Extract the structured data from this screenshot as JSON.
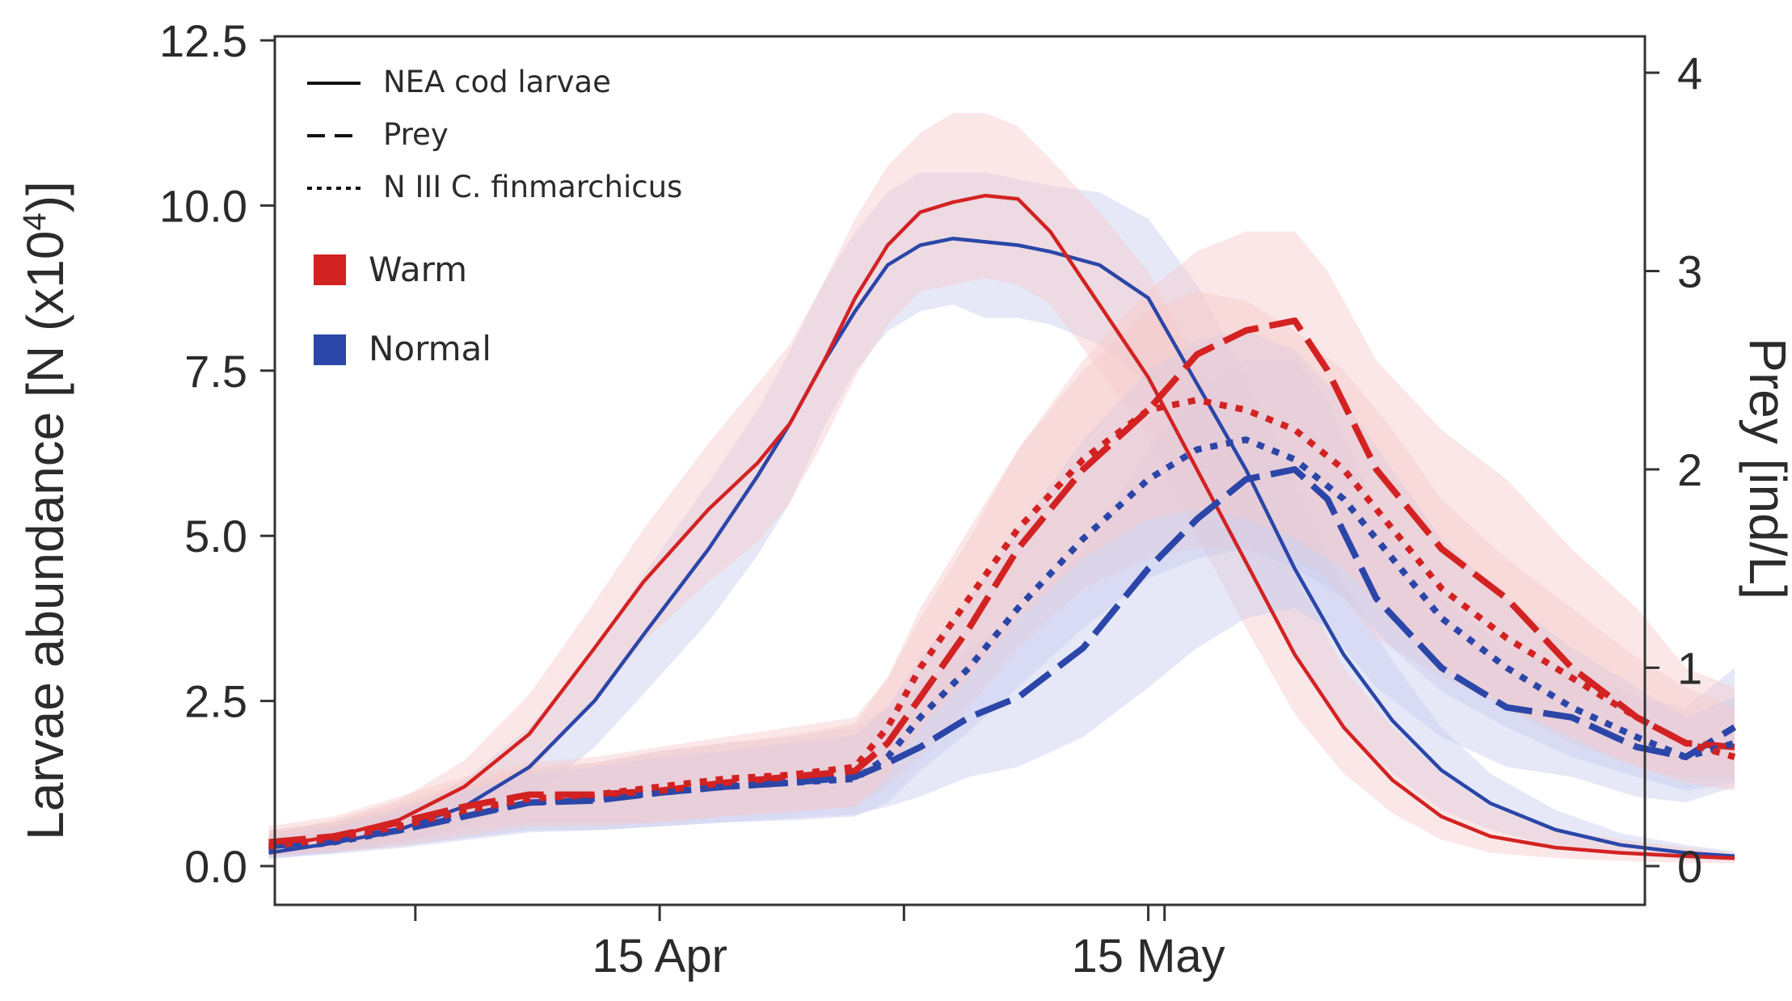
{
  "chart_data": {
    "type": "line",
    "title": "",
    "xlabel": "",
    "ylabel": "Larvae abundance [N (x10",
    "ylabel_sup": "4",
    "ylabel_end": ")]",
    "y2label": "Prey [ind/L]",
    "ylim": [
      0,
      12.5
    ],
    "y2lim": [
      0,
      4.15
    ],
    "yticks": [
      0.0,
      2.5,
      5.0,
      7.5,
      10.0,
      12.5
    ],
    "ytick_labels": [
      "0.0",
      "2.5",
      "5.0",
      "7.5",
      "10.0",
      "12.5"
    ],
    "y2ticks": [
      0,
      1,
      2,
      3,
      4
    ],
    "y2tick_labels": [
      "0",
      "1",
      "2",
      "3",
      "4"
    ],
    "x_days": [
      -12,
      4
    ],
    "xticks_minor": [
      -1,
      29,
      45
    ],
    "xticks_labeled": [
      14,
      44
    ],
    "xtick_labels": [
      "15 Apr",
      "15 May"
    ],
    "x_unit": "days since 1 Apr",
    "legend": {
      "line_styles": [
        {
          "style": "solid",
          "label": "NEA cod larvae"
        },
        {
          "style": "dashed",
          "label": "Prey"
        },
        {
          "style": "dotted",
          "label": "N III C. finmarchicus"
        }
      ],
      "scenarios": [
        {
          "label": "Warm",
          "color": "#d32222"
        },
        {
          "label": "Normal",
          "color": "#2b46a8"
        }
      ]
    },
    "colors": {
      "warm": "#d32222",
      "normal": "#2b46a8",
      "warm_band": "#f7c9c9",
      "normal_band": "#c7cbee"
    },
    "series": [
      {
        "name": "NEA cod larvae - Warm",
        "scenario": "warm",
        "style": "solid",
        "axis": "left",
        "x": [
          -10,
          -6,
          -2,
          2,
          6,
          10,
          13,
          17,
          20,
          22,
          24,
          26,
          28,
          30,
          32,
          34,
          36,
          38,
          41,
          44,
          47,
          50,
          53,
          56,
          59,
          62,
          65,
          69,
          73,
          77,
          80
        ],
        "y": [
          0.3,
          0.45,
          0.7,
          1.2,
          2.0,
          3.3,
          4.3,
          5.4,
          6.1,
          6.7,
          7.6,
          8.6,
          9.4,
          9.9,
          10.05,
          10.15,
          10.1,
          9.6,
          8.5,
          7.4,
          6.0,
          4.6,
          3.2,
          2.1,
          1.3,
          0.75,
          0.45,
          0.28,
          0.2,
          0.15,
          0.12
        ],
        "band_hi": [
          0.5,
          0.7,
          1.0,
          1.6,
          2.6,
          4.0,
          5.1,
          6.4,
          7.3,
          7.9,
          8.8,
          9.8,
          10.6,
          11.1,
          11.4,
          11.4,
          11.2,
          10.7,
          9.9,
          9.0,
          7.6,
          6.0,
          4.4,
          3.0,
          2.1,
          1.4,
          0.9,
          0.55,
          0.4,
          0.28,
          0.2
        ],
        "band_lo": [
          0.15,
          0.25,
          0.45,
          0.8,
          1.4,
          2.5,
          3.4,
          4.3,
          4.9,
          5.5,
          6.4,
          7.4,
          8.2,
          8.7,
          8.8,
          8.9,
          8.8,
          8.5,
          7.5,
          6.5,
          5.0,
          3.6,
          2.3,
          1.4,
          0.8,
          0.4,
          0.2,
          0.12,
          0.08,
          0.05,
          0.04
        ]
      },
      {
        "name": "NEA cod larvae - Normal",
        "scenario": "normal",
        "style": "solid",
        "axis": "left",
        "x": [
          -10,
          -6,
          -2,
          2,
          6,
          10,
          13,
          17,
          20,
          22,
          24,
          26,
          28,
          30,
          32,
          34,
          36,
          38,
          41,
          44,
          47,
          50,
          53,
          56,
          59,
          62,
          65,
          69,
          73,
          77,
          80
        ],
        "y": [
          0.2,
          0.35,
          0.55,
          0.9,
          1.5,
          2.5,
          3.5,
          4.8,
          5.9,
          6.7,
          7.6,
          8.4,
          9.1,
          9.4,
          9.5,
          9.45,
          9.4,
          9.3,
          9.1,
          8.6,
          7.3,
          6.0,
          4.5,
          3.2,
          2.2,
          1.45,
          0.95,
          0.55,
          0.32,
          0.2,
          0.15
        ],
        "band_hi": [
          0.35,
          0.55,
          0.8,
          1.3,
          2.1,
          3.3,
          4.4,
          5.8,
          6.9,
          7.8,
          8.8,
          9.6,
          10.2,
          10.5,
          10.5,
          10.5,
          10.4,
          10.3,
          10.2,
          9.8,
          8.8,
          7.4,
          5.8,
          4.3,
          3.1,
          2.1,
          1.4,
          0.85,
          0.5,
          0.32,
          0.22
        ],
        "band_lo": [
          0.1,
          0.2,
          0.35,
          0.6,
          1.0,
          1.8,
          2.6,
          3.7,
          4.7,
          5.5,
          6.6,
          7.5,
          8.1,
          8.4,
          8.5,
          8.3,
          8.3,
          8.2,
          7.9,
          7.3,
          5.8,
          4.6,
          3.2,
          2.1,
          1.4,
          0.85,
          0.55,
          0.3,
          0.18,
          0.1,
          0.08
        ]
      },
      {
        "name": "Prey - Warm",
        "scenario": "warm",
        "style": "dashed",
        "axis": "right",
        "x": [
          -10,
          -6,
          -2,
          2,
          6,
          10,
          14,
          18,
          22,
          26,
          28,
          30,
          33,
          36,
          40,
          44,
          47,
          50,
          53,
          55,
          58,
          62,
          66,
          70,
          74,
          77,
          80
        ],
        "y": [
          0.12,
          0.15,
          0.22,
          0.3,
          0.36,
          0.36,
          0.38,
          0.42,
          0.45,
          0.48,
          0.62,
          0.85,
          1.2,
          1.6,
          2.0,
          2.3,
          2.58,
          2.7,
          2.75,
          2.5,
          2.0,
          1.6,
          1.35,
          1.0,
          0.75,
          0.62,
          0.6
        ],
        "band_hi": [
          0.2,
          0.25,
          0.35,
          0.45,
          0.52,
          0.55,
          0.6,
          0.65,
          0.7,
          0.75,
          0.95,
          1.25,
          1.65,
          2.1,
          2.55,
          2.9,
          3.1,
          3.2,
          3.2,
          3.0,
          2.55,
          2.2,
          1.95,
          1.6,
          1.3,
          1.0,
          0.9
        ],
        "band_lo": [
          0.06,
          0.08,
          0.12,
          0.18,
          0.22,
          0.22,
          0.22,
          0.25,
          0.28,
          0.3,
          0.4,
          0.55,
          0.8,
          1.1,
          1.4,
          1.55,
          1.6,
          1.6,
          1.55,
          1.45,
          1.15,
          0.95,
          0.8,
          0.62,
          0.5,
          0.45,
          0.45
        ]
      },
      {
        "name": "Prey - Normal",
        "scenario": "normal",
        "style": "dashed",
        "axis": "right",
        "x": [
          -10,
          -6,
          -2,
          2,
          6,
          10,
          14,
          18,
          22,
          26,
          28,
          30,
          33,
          36,
          40,
          44,
          47,
          50,
          53,
          55,
          58,
          62,
          66,
          70,
          74,
          77,
          80
        ],
        "y": [
          0.1,
          0.13,
          0.18,
          0.25,
          0.32,
          0.33,
          0.37,
          0.4,
          0.42,
          0.45,
          0.52,
          0.6,
          0.75,
          0.85,
          1.1,
          1.5,
          1.75,
          1.95,
          2.0,
          1.85,
          1.35,
          1.0,
          0.8,
          0.75,
          0.6,
          0.55,
          0.7
        ],
        "band_hi": [
          0.18,
          0.22,
          0.3,
          0.4,
          0.48,
          0.52,
          0.58,
          0.62,
          0.65,
          0.7,
          0.8,
          0.9,
          1.1,
          1.25,
          1.6,
          2.1,
          2.4,
          2.55,
          2.55,
          2.35,
          1.8,
          1.35,
          1.1,
          1.0,
          0.85,
          0.8,
          1.0
        ],
        "band_lo": [
          0.05,
          0.07,
          0.1,
          0.14,
          0.18,
          0.18,
          0.2,
          0.22,
          0.24,
          0.26,
          0.3,
          0.35,
          0.45,
          0.5,
          0.65,
          0.9,
          1.1,
          1.25,
          1.3,
          1.2,
          0.9,
          0.65,
          0.5,
          0.45,
          0.35,
          0.32,
          0.4
        ]
      },
      {
        "name": "N III C. finmarchicus - Warm",
        "scenario": "warm",
        "style": "dotted",
        "axis": "right",
        "x": [
          -10,
          -6,
          -2,
          2,
          6,
          10,
          14,
          18,
          22,
          26,
          28,
          30,
          33,
          36,
          40,
          44,
          47,
          50,
          53,
          56,
          59,
          62,
          66,
          70,
          74,
          77,
          80
        ],
        "y": [
          0.1,
          0.14,
          0.2,
          0.28,
          0.34,
          0.36,
          0.4,
          0.44,
          0.46,
          0.5,
          0.7,
          1.0,
          1.35,
          1.7,
          2.05,
          2.3,
          2.35,
          2.3,
          2.2,
          2.0,
          1.7,
          1.4,
          1.15,
          0.95,
          0.75,
          0.62,
          0.55
        ],
        "band_hi": [
          0.18,
          0.22,
          0.32,
          0.42,
          0.5,
          0.52,
          0.58,
          0.62,
          0.66,
          0.72,
          0.95,
          1.3,
          1.7,
          2.1,
          2.5,
          2.8,
          2.9,
          2.85,
          2.7,
          2.5,
          2.2,
          1.85,
          1.55,
          1.3,
          1.05,
          0.9,
          0.8
        ],
        "band_lo": [
          0.05,
          0.07,
          0.1,
          0.15,
          0.2,
          0.2,
          0.22,
          0.25,
          0.27,
          0.3,
          0.45,
          0.7,
          0.95,
          1.25,
          1.55,
          1.75,
          1.8,
          1.75,
          1.65,
          1.5,
          1.25,
          1.0,
          0.8,
          0.65,
          0.5,
          0.42,
          0.38
        ]
      },
      {
        "name": "N III C. finmarchicus - Normal",
        "scenario": "normal",
        "style": "dotted",
        "axis": "right",
        "x": [
          -10,
          -6,
          -2,
          2,
          6,
          10,
          14,
          18,
          22,
          26,
          28,
          30,
          33,
          36,
          40,
          44,
          47,
          50,
          53,
          56,
          59,
          62,
          66,
          70,
          74,
          77,
          80
        ],
        "y": [
          0.08,
          0.12,
          0.18,
          0.26,
          0.32,
          0.34,
          0.37,
          0.4,
          0.42,
          0.44,
          0.55,
          0.75,
          1.0,
          1.3,
          1.65,
          1.95,
          2.1,
          2.15,
          2.05,
          1.85,
          1.55,
          1.25,
          1.0,
          0.8,
          0.65,
          0.55,
          0.62
        ],
        "band_hi": [
          0.15,
          0.2,
          0.28,
          0.38,
          0.46,
          0.5,
          0.55,
          0.58,
          0.62,
          0.66,
          0.8,
          1.05,
          1.35,
          1.7,
          2.15,
          2.5,
          2.65,
          2.7,
          2.6,
          2.35,
          2.0,
          1.65,
          1.35,
          1.1,
          0.9,
          0.75,
          0.85
        ],
        "band_lo": [
          0.04,
          0.06,
          0.09,
          0.13,
          0.17,
          0.18,
          0.2,
          0.22,
          0.23,
          0.25,
          0.32,
          0.48,
          0.68,
          0.9,
          1.2,
          1.45,
          1.55,
          1.6,
          1.5,
          1.35,
          1.1,
          0.88,
          0.7,
          0.55,
          0.45,
          0.38,
          0.42
        ]
      }
    ]
  }
}
